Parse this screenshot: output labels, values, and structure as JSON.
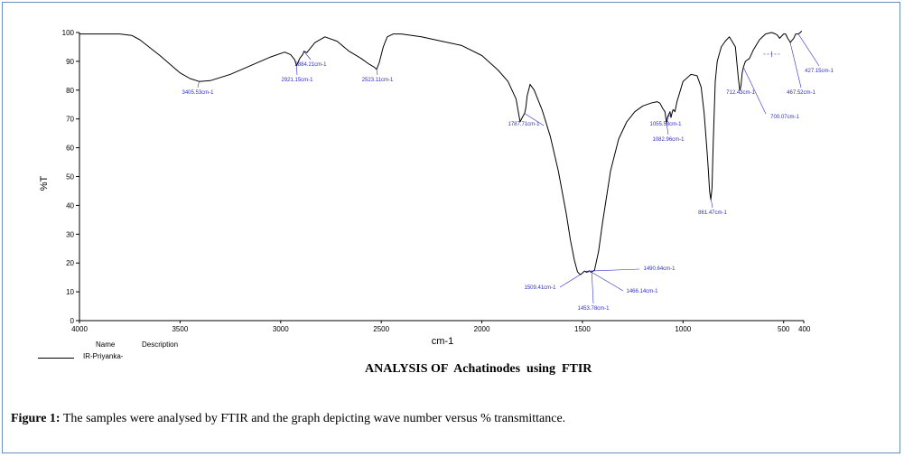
{
  "chart_data": {
    "type": "line",
    "title": "ANALYSIS OF  Achatinodes  using  FTIR",
    "xlabel": "cm-1",
    "ylabel": "%T",
    "xlim": [
      4000,
      400
    ],
    "ylim": [
      0,
      100
    ],
    "xticks": [
      4000,
      3500,
      3000,
      2500,
      2000,
      1500,
      1000,
      500,
      400
    ],
    "yticks": [
      0,
      10,
      20,
      30,
      40,
      50,
      60,
      70,
      80,
      90,
      100
    ],
    "grid": false,
    "legend": {
      "headers": [
        "Name",
        "Description"
      ],
      "entries": [
        "IR-Priyanka-"
      ]
    },
    "series": [
      {
        "x": [
          4000,
          3800,
          3740,
          3700,
          3600,
          3500,
          3450,
          3405,
          3350,
          3250,
          3150,
          3050,
          2980,
          2950,
          2930,
          2921,
          2905,
          2890,
          2884,
          2870,
          2830,
          2780,
          2720,
          2660,
          2600,
          2560,
          2535,
          2523,
          2510,
          2490,
          2470,
          2440,
          2400,
          2300,
          2200,
          2100,
          2000,
          1920,
          1870,
          1830,
          1810,
          1795,
          1787,
          1781,
          1775,
          1760,
          1740,
          1700,
          1660,
          1620,
          1580,
          1560,
          1540,
          1525,
          1515,
          1509,
          1500,
          1490,
          1480,
          1470,
          1466,
          1458,
          1453,
          1440,
          1420,
          1400,
          1360,
          1320,
          1280,
          1240,
          1200,
          1160,
          1130,
          1115,
          1100,
          1090,
          1082,
          1075,
          1065,
          1060,
          1055,
          1050,
          1045,
          1040,
          1030,
          1000,
          960,
          930,
          910,
          895,
          880,
          874,
          868,
          862,
          856,
          850,
          840,
          830,
          810,
          790,
          770,
          740,
          725,
          718,
          712,
          706,
          700,
          690,
          670,
          650,
          620,
          590,
          560,
          540,
          530,
          520,
          500,
          490,
          480,
          470,
          467,
          462,
          450,
          440,
          430,
          427,
          420,
          410
        ],
        "y": [
          99.5,
          99.5,
          99,
          97.5,
          92,
          86,
          84,
          83,
          83.3,
          85.5,
          88.5,
          91.5,
          93.2,
          92.3,
          90.5,
          88.5,
          91,
          92.4,
          93.5,
          93,
          96.5,
          98.5,
          97,
          93.5,
          91,
          89,
          88,
          87.2,
          89.5,
          95,
          98.5,
          99.5,
          99.5,
          98.5,
          97,
          95.5,
          92,
          87,
          83,
          77,
          69,
          71,
          72,
          74,
          78,
          82,
          80,
          73,
          64,
          52,
          37,
          28,
          21,
          17,
          16.2,
          16,
          16.5,
          17.2,
          16.8,
          17,
          17.3,
          16.8,
          17,
          17.5,
          24,
          34,
          52,
          63,
          69,
          72.5,
          74.5,
          75.5,
          76,
          75.5,
          73.5,
          72.5,
          68.5,
          71,
          72.5,
          70.5,
          72,
          73.2,
          73,
          72.5,
          76,
          83,
          85.5,
          85,
          81,
          72,
          58,
          52,
          45,
          42,
          46,
          62,
          83,
          90,
          95,
          97,
          98.5,
          95,
          84,
          80,
          81.5,
          86,
          88,
          90,
          91,
          94,
          97.5,
          99.5,
          100,
          99.5,
          99,
          98,
          99.5,
          99.5,
          98,
          97,
          96.5,
          97,
          98,
          99.5,
          99.5,
          99.5,
          99.8,
          100.5
        ]
      }
    ],
    "annotations": [
      {
        "x": 3405.53,
        "label": "3405.53cm-1"
      },
      {
        "x": 2921.15,
        "label": "2921.15cm-1"
      },
      {
        "x": 2884.21,
        "label": "2884.21cm-1"
      },
      {
        "x": 2523.11,
        "label": "2523.11cm-1"
      },
      {
        "x": 1787.71,
        "label": "1787.71cm-1"
      },
      {
        "x": 1509.41,
        "label": "1509.41cm-1"
      },
      {
        "x": 1490.64,
        "label": "1490.64cm-1"
      },
      {
        "x": 1466.14,
        "label": "1466.14cm-1"
      },
      {
        "x": 1453.78,
        "label": "1453.78cm-1"
      },
      {
        "x": 1082.96,
        "label": "1082.96cm-1"
      },
      {
        "x": 1055.53,
        "label": "1055.53cm-1"
      },
      {
        "x": 861.47,
        "label": "861.47cm-1"
      },
      {
        "x": 712.43,
        "label": "712.43cm-1"
      },
      {
        "x": 700.07,
        "label": "700.07cm-1"
      },
      {
        "x": 467.52,
        "label": "467.52cm-1"
      },
      {
        "x": 427.15,
        "label": "427.15cm-1"
      }
    ]
  },
  "figure": {
    "caption_label": "Figure 1:",
    "caption_text": " The samples were analysed by FTIR and the graph depicting wave number versus % transmittance."
  },
  "colors": {
    "curve": "#000000",
    "annotation": "#2f2fc8",
    "frame": "#6a8fc1"
  }
}
